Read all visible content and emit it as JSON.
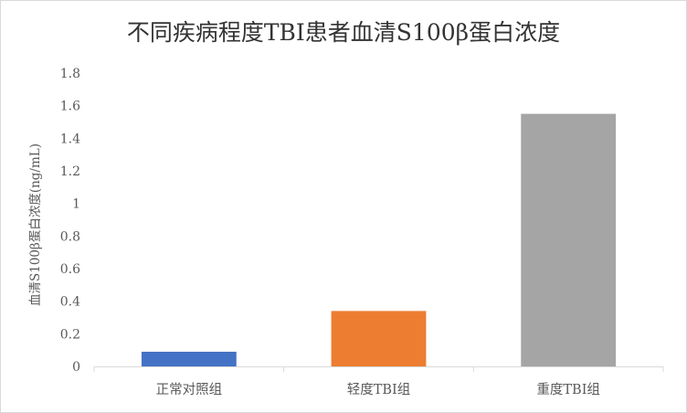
{
  "chart_data": {
    "type": "bar",
    "title": "不同疾病程度TBI患者血清S100β蛋白浓度",
    "xlabel": "",
    "ylabel": "血清S100β蛋白浓度(ng/mL)",
    "categories": [
      "正常对照组",
      "轻度TBI组",
      "重度TBI组"
    ],
    "values": [
      0.09,
      0.34,
      1.55
    ],
    "colors": [
      "#4472c4",
      "#ed7d31",
      "#a5a5a5"
    ],
    "ylim": [
      0,
      1.8
    ],
    "yticks": [
      "0",
      "0.2",
      "0.4",
      "0.6",
      "0.8",
      "1",
      "1.2",
      "1.4",
      "1.6",
      "1.8"
    ],
    "grid": false,
    "legend": "none"
  }
}
